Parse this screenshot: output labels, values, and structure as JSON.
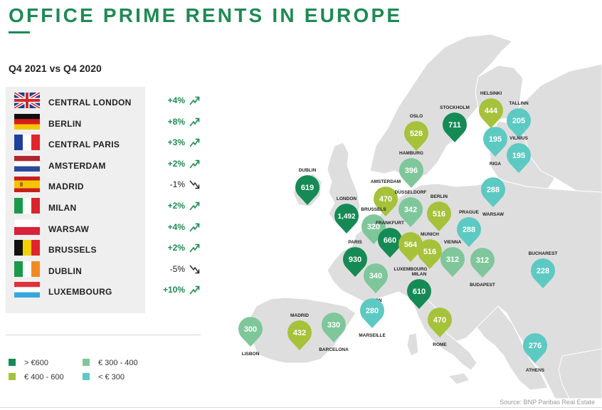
{
  "title": "OFFICE PRIME RENTS IN EUROPE",
  "subtitle": "Q4 2021 vs Q4 2020",
  "colors": {
    "brand": "#1f8a54",
    "over_600": "#168a55",
    "range_400_600": "#a6c23b",
    "range_300_400": "#7fc79b",
    "under_300": "#5ccac2",
    "land": "#dedede",
    "sea": "#ffffff"
  },
  "ranking": [
    {
      "city": "CENTRAL LONDON",
      "flag": "uk-flag-icon",
      "change": "+4%",
      "direction": "up"
    },
    {
      "city": "BERLIN",
      "flag": "germany-flag-icon",
      "change": "+8%",
      "direction": "up"
    },
    {
      "city": "CENTRAL PARIS",
      "flag": "france-flag-icon",
      "change": "+3%",
      "direction": "up"
    },
    {
      "city": "AMSTERDAM",
      "flag": "netherlands-flag-icon",
      "change": "+2%",
      "direction": "up"
    },
    {
      "city": "MADRID",
      "flag": "spain-flag-icon",
      "change": "-1%",
      "direction": "down"
    },
    {
      "city": "MILAN",
      "flag": "italy-flag-icon",
      "change": "+2%",
      "direction": "up"
    },
    {
      "city": "WARSAW",
      "flag": "poland-flag-icon",
      "change": "+4%",
      "direction": "up"
    },
    {
      "city": "BRUSSELS",
      "flag": "belgium-flag-icon",
      "change": "+2%",
      "direction": "up"
    },
    {
      "city": "DUBLIN",
      "flag": "ireland-flag-icon",
      "change": "-5%",
      "direction": "down"
    },
    {
      "city": "LUXEMBOURG",
      "flag": "luxembourg-flag-icon",
      "change": "+10%",
      "direction": "up"
    }
  ],
  "legend": [
    {
      "label": "> €600",
      "color": "#168a55"
    },
    {
      "label": "€ 300 - 400",
      "color": "#7fc79b"
    },
    {
      "label": "€ 400 - 600",
      "color": "#a6c23b"
    },
    {
      "label": "< € 300",
      "color": "#5ccac2"
    }
  ],
  "markers": [
    {
      "city": "STOCKHOLM",
      "value": "711",
      "category": "over_600"
    },
    {
      "city": "HELSINKI",
      "value": "444",
      "category": "range_400_600"
    },
    {
      "city": "TALLINN",
      "value": "205",
      "category": "under_300"
    },
    {
      "city": "OSLO",
      "value": "528",
      "category": "range_400_600"
    },
    {
      "city": "RIGA",
      "value": "195",
      "category": "under_300"
    },
    {
      "city": "VILNIUS",
      "value": "195",
      "category": "under_300"
    },
    {
      "city": "HAMBURG",
      "value": "396",
      "category": "range_300_400"
    },
    {
      "city": "DUBLIN",
      "value": "619",
      "category": "over_600"
    },
    {
      "city": "AMSTERDAM",
      "value": "470",
      "category": "range_400_600"
    },
    {
      "city": "DÜSSELDORF",
      "value": "342",
      "category": "range_300_400"
    },
    {
      "city": "BERLIN",
      "value": "516",
      "category": "range_400_600"
    },
    {
      "city": "WARSAW",
      "value": "288",
      "category": "under_300"
    },
    {
      "city": "LONDON",
      "value": "1,492",
      "category": "over_600"
    },
    {
      "city": "BRUSSELS",
      "value": "320",
      "category": "range_300_400"
    },
    {
      "city": "FRANKFURT",
      "value": "660",
      "category": "over_600"
    },
    {
      "city": "PRAGUE",
      "value": "288",
      "category": "under_300"
    },
    {
      "city": "LUXEMBOURG",
      "value": "564",
      "category": "range_400_600"
    },
    {
      "city": "MUNICH",
      "value": "516",
      "category": "range_400_600"
    },
    {
      "city": "PARIS",
      "value": "930",
      "category": "over_600"
    },
    {
      "city": "VIENNA",
      "value": "312",
      "category": "range_300_400"
    },
    {
      "city": "BUDAPEST",
      "value": "312",
      "category": "range_300_400"
    },
    {
      "city": "BUCHAREST",
      "value": "228",
      "category": "under_300"
    },
    {
      "city": "LYON",
      "value": "340",
      "category": "range_300_400"
    },
    {
      "city": "MILAN",
      "value": "610",
      "category": "over_600"
    },
    {
      "city": "MARSEILLE",
      "value": "280",
      "category": "under_300"
    },
    {
      "city": "MADRID",
      "value": "432",
      "category": "range_400_600"
    },
    {
      "city": "BARCELONA",
      "value": "330",
      "category": "range_300_400"
    },
    {
      "city": "LISBON",
      "value": "300",
      "category": "range_300_400"
    },
    {
      "city": "ROME",
      "value": "470",
      "category": "range_400_600"
    },
    {
      "city": "ATHENS",
      "value": "276",
      "category": "under_300"
    }
  ],
  "source": "Source: BNP Paribas Real Estate"
}
